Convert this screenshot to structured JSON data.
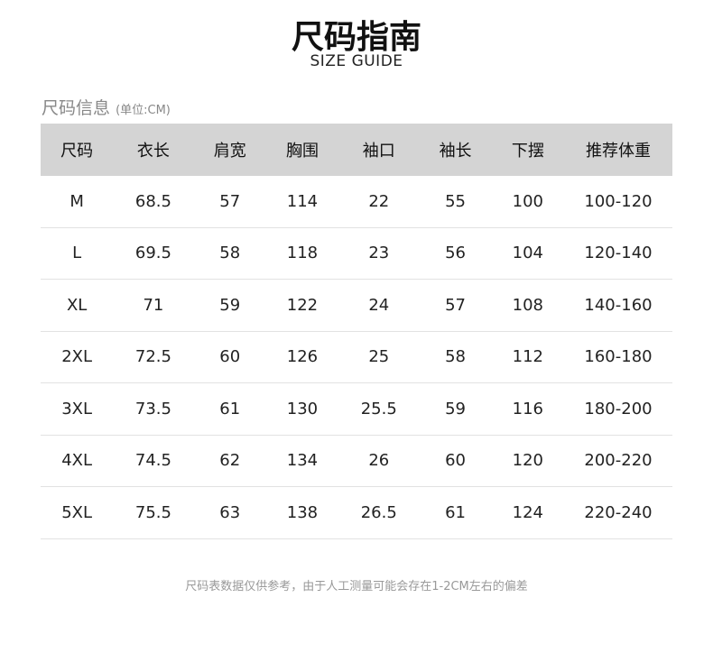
{
  "title": "尺码指南",
  "subtitle": "SIZE GUIDE",
  "info": {
    "label": "尺码信息",
    "unit": "(单位:CM)"
  },
  "table": {
    "headers": [
      "尺码",
      "衣长",
      "肩宽",
      "胸围",
      "袖口",
      "袖长",
      "下摆",
      "推荐体重"
    ],
    "rows": [
      [
        "M",
        "68.5",
        "57",
        "114",
        "22",
        "55",
        "100",
        "100-120"
      ],
      [
        "L",
        "69.5",
        "58",
        "118",
        "23",
        "56",
        "104",
        "120-140"
      ],
      [
        "XL",
        "71",
        "59",
        "122",
        "24",
        "57",
        "108",
        "140-160"
      ],
      [
        "2XL",
        "72.5",
        "60",
        "126",
        "25",
        "58",
        "112",
        "160-180"
      ],
      [
        "3XL",
        "73.5",
        "61",
        "130",
        "25.5",
        "59",
        "116",
        "180-200"
      ],
      [
        "4XL",
        "74.5",
        "62",
        "134",
        "26",
        "60",
        "120",
        "200-220"
      ],
      [
        "5XL",
        "75.5",
        "63",
        "138",
        "26.5",
        "61",
        "124",
        "220-240"
      ]
    ]
  },
  "note": "尺码表数据仅供参考，由于人工测量可能会存在1-2CM左右的偏差"
}
